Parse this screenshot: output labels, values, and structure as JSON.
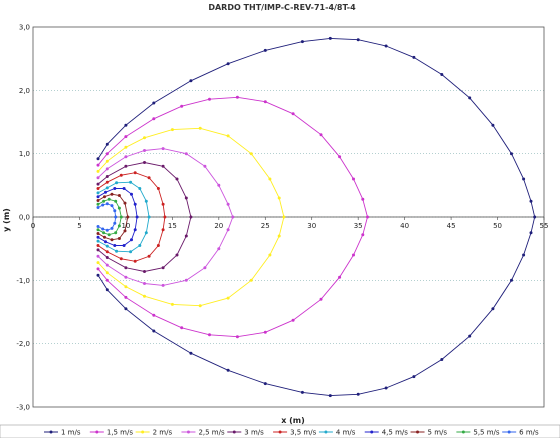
{
  "chart_data": {
    "type": "scatter",
    "title": "DARDO THT/IMP-C-REV-71-4/8T-4",
    "xlabel": "x (m)",
    "ylabel": "y (m)",
    "xlim": [
      0,
      55
    ],
    "ylim": [
      -3,
      3
    ],
    "x_ticks": [
      "0",
      "5",
      "10",
      "15",
      "20",
      "25",
      "30",
      "35",
      "40",
      "45",
      "50",
      "55"
    ],
    "y_ticks": [
      "3,0",
      "2,0",
      "1,0",
      "0,0",
      "-1,0",
      "-2,0",
      "-3,0"
    ],
    "grid": "horizontal dotted",
    "legend_position": "bottom",
    "symmetric_about_x_axis": true,
    "series": [
      {
        "name": "1 m/s",
        "color": "#1f1f7a",
        "x": [
          7,
          8,
          10,
          13,
          17,
          21,
          25,
          29,
          32,
          35,
          38,
          41,
          44,
          47,
          49.5,
          51.5,
          52.8,
          53.6,
          54
        ],
        "y": [
          0.92,
          1.15,
          1.45,
          1.8,
          2.15,
          2.42,
          2.63,
          2.77,
          2.82,
          2.8,
          2.7,
          2.52,
          2.25,
          1.88,
          1.45,
          1.0,
          0.6,
          0.25,
          0.0
        ]
      },
      {
        "name": "1,5 m/s",
        "color": "#cc33cc",
        "x": [
          7,
          8,
          10,
          13,
          16,
          19,
          22,
          25,
          28,
          31,
          33,
          34.5,
          35.5,
          36
        ],
        "y": [
          0.82,
          1.0,
          1.27,
          1.55,
          1.75,
          1.86,
          1.89,
          1.82,
          1.63,
          1.3,
          0.95,
          0.6,
          0.28,
          0.0
        ]
      },
      {
        "name": "2 m/s",
        "color": "#ffee22",
        "x": [
          7,
          8,
          10,
          12,
          15,
          18,
          21,
          23.5,
          25.5,
          26.5,
          27
        ],
        "y": [
          0.72,
          0.88,
          1.1,
          1.25,
          1.38,
          1.4,
          1.28,
          1.0,
          0.6,
          0.3,
          0.0
        ]
      },
      {
        "name": "2,5 m/s",
        "color": "#cc55dd",
        "x": [
          7,
          8,
          10,
          12,
          14,
          16.5,
          18.5,
          20,
          21,
          21.5
        ],
        "y": [
          0.62,
          0.76,
          0.95,
          1.05,
          1.08,
          1.0,
          0.8,
          0.5,
          0.2,
          0.0
        ]
      },
      {
        "name": "3 m/s",
        "color": "#6a1a6a",
        "x": [
          7,
          8,
          10,
          12,
          14,
          15.5,
          16.5,
          17
        ],
        "y": [
          0.52,
          0.64,
          0.8,
          0.86,
          0.8,
          0.6,
          0.3,
          0.0
        ]
      },
      {
        "name": "3,5 m/s",
        "color": "#cc2222",
        "x": [
          7,
          8,
          9.5,
          11,
          12.5,
          13.5,
          14,
          14.2
        ],
        "y": [
          0.45,
          0.55,
          0.66,
          0.7,
          0.62,
          0.45,
          0.2,
          0.0
        ]
      },
      {
        "name": "4 m/s",
        "color": "#22aacc",
        "x": [
          7,
          8,
          9,
          10.5,
          11.5,
          12.2,
          12.5
        ],
        "y": [
          0.38,
          0.46,
          0.54,
          0.55,
          0.45,
          0.25,
          0.0
        ]
      },
      {
        "name": "4,5 m/s",
        "color": "#2222cc",
        "x": [
          7,
          7.8,
          8.8,
          9.8,
          10.6,
          11,
          11.2
        ],
        "y": [
          0.32,
          0.39,
          0.45,
          0.45,
          0.36,
          0.2,
          0.0
        ]
      },
      {
        "name": "5 m/s",
        "color": "#882222",
        "x": [
          7,
          7.7,
          8.5,
          9.3,
          9.9,
          10.2
        ],
        "y": [
          0.26,
          0.32,
          0.36,
          0.34,
          0.22,
          0.0
        ]
      },
      {
        "name": "5,5 m/s",
        "color": "#33aa44",
        "x": [
          7,
          7.6,
          8.2,
          8.9,
          9.3,
          9.5
        ],
        "y": [
          0.2,
          0.25,
          0.28,
          0.25,
          0.14,
          0.0
        ]
      },
      {
        "name": "6 m/s",
        "color": "#3366ee",
        "x": [
          7,
          7.5,
          8,
          8.5,
          8.8,
          8.9
        ],
        "y": [
          0.15,
          0.19,
          0.21,
          0.18,
          0.1,
          0.0
        ]
      }
    ]
  }
}
